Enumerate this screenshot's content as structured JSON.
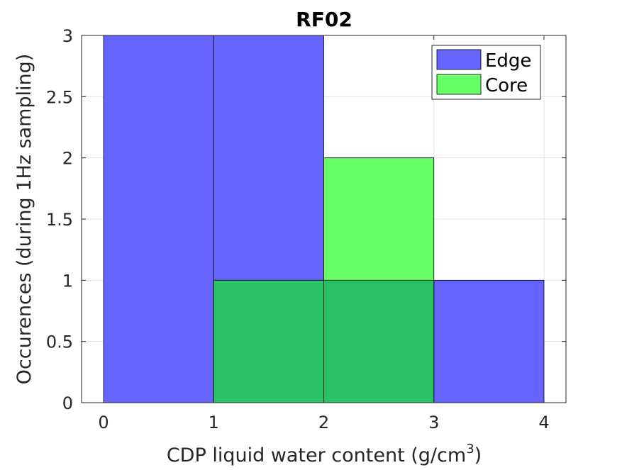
{
  "chart_data": {
    "type": "bar",
    "title": "RF02",
    "xlabel": "CDP liquid water content (g/cm",
    "xlabel_superscript": "3",
    "xlabel_suffix": ")",
    "ylabel": "Occurences (during 1Hz sampling)",
    "bin_edges": [
      0,
      1,
      2,
      3,
      4
    ],
    "xlim": [
      -0.2,
      4.2
    ],
    "ylim": [
      0,
      3
    ],
    "xticks": [
      0,
      1,
      2,
      3,
      4
    ],
    "xtick_labels": [
      "0",
      "1",
      "2",
      "3",
      "4"
    ],
    "yticks": [
      0,
      0.5,
      1,
      1.5,
      2,
      2.5,
      3
    ],
    "ytick_labels": [
      "0",
      "0.5",
      "1",
      "1.5",
      "2",
      "2.5",
      "3"
    ],
    "grid": true,
    "legend_position": "top-right",
    "series": [
      {
        "name": "Edge",
        "color": "#6666ff",
        "values": [
          3,
          3,
          1,
          1
        ]
      },
      {
        "name": "Core",
        "color": "#66ff66",
        "values": [
          0,
          1,
          2,
          0
        ]
      }
    ],
    "overlap_color": "#2ac266"
  }
}
